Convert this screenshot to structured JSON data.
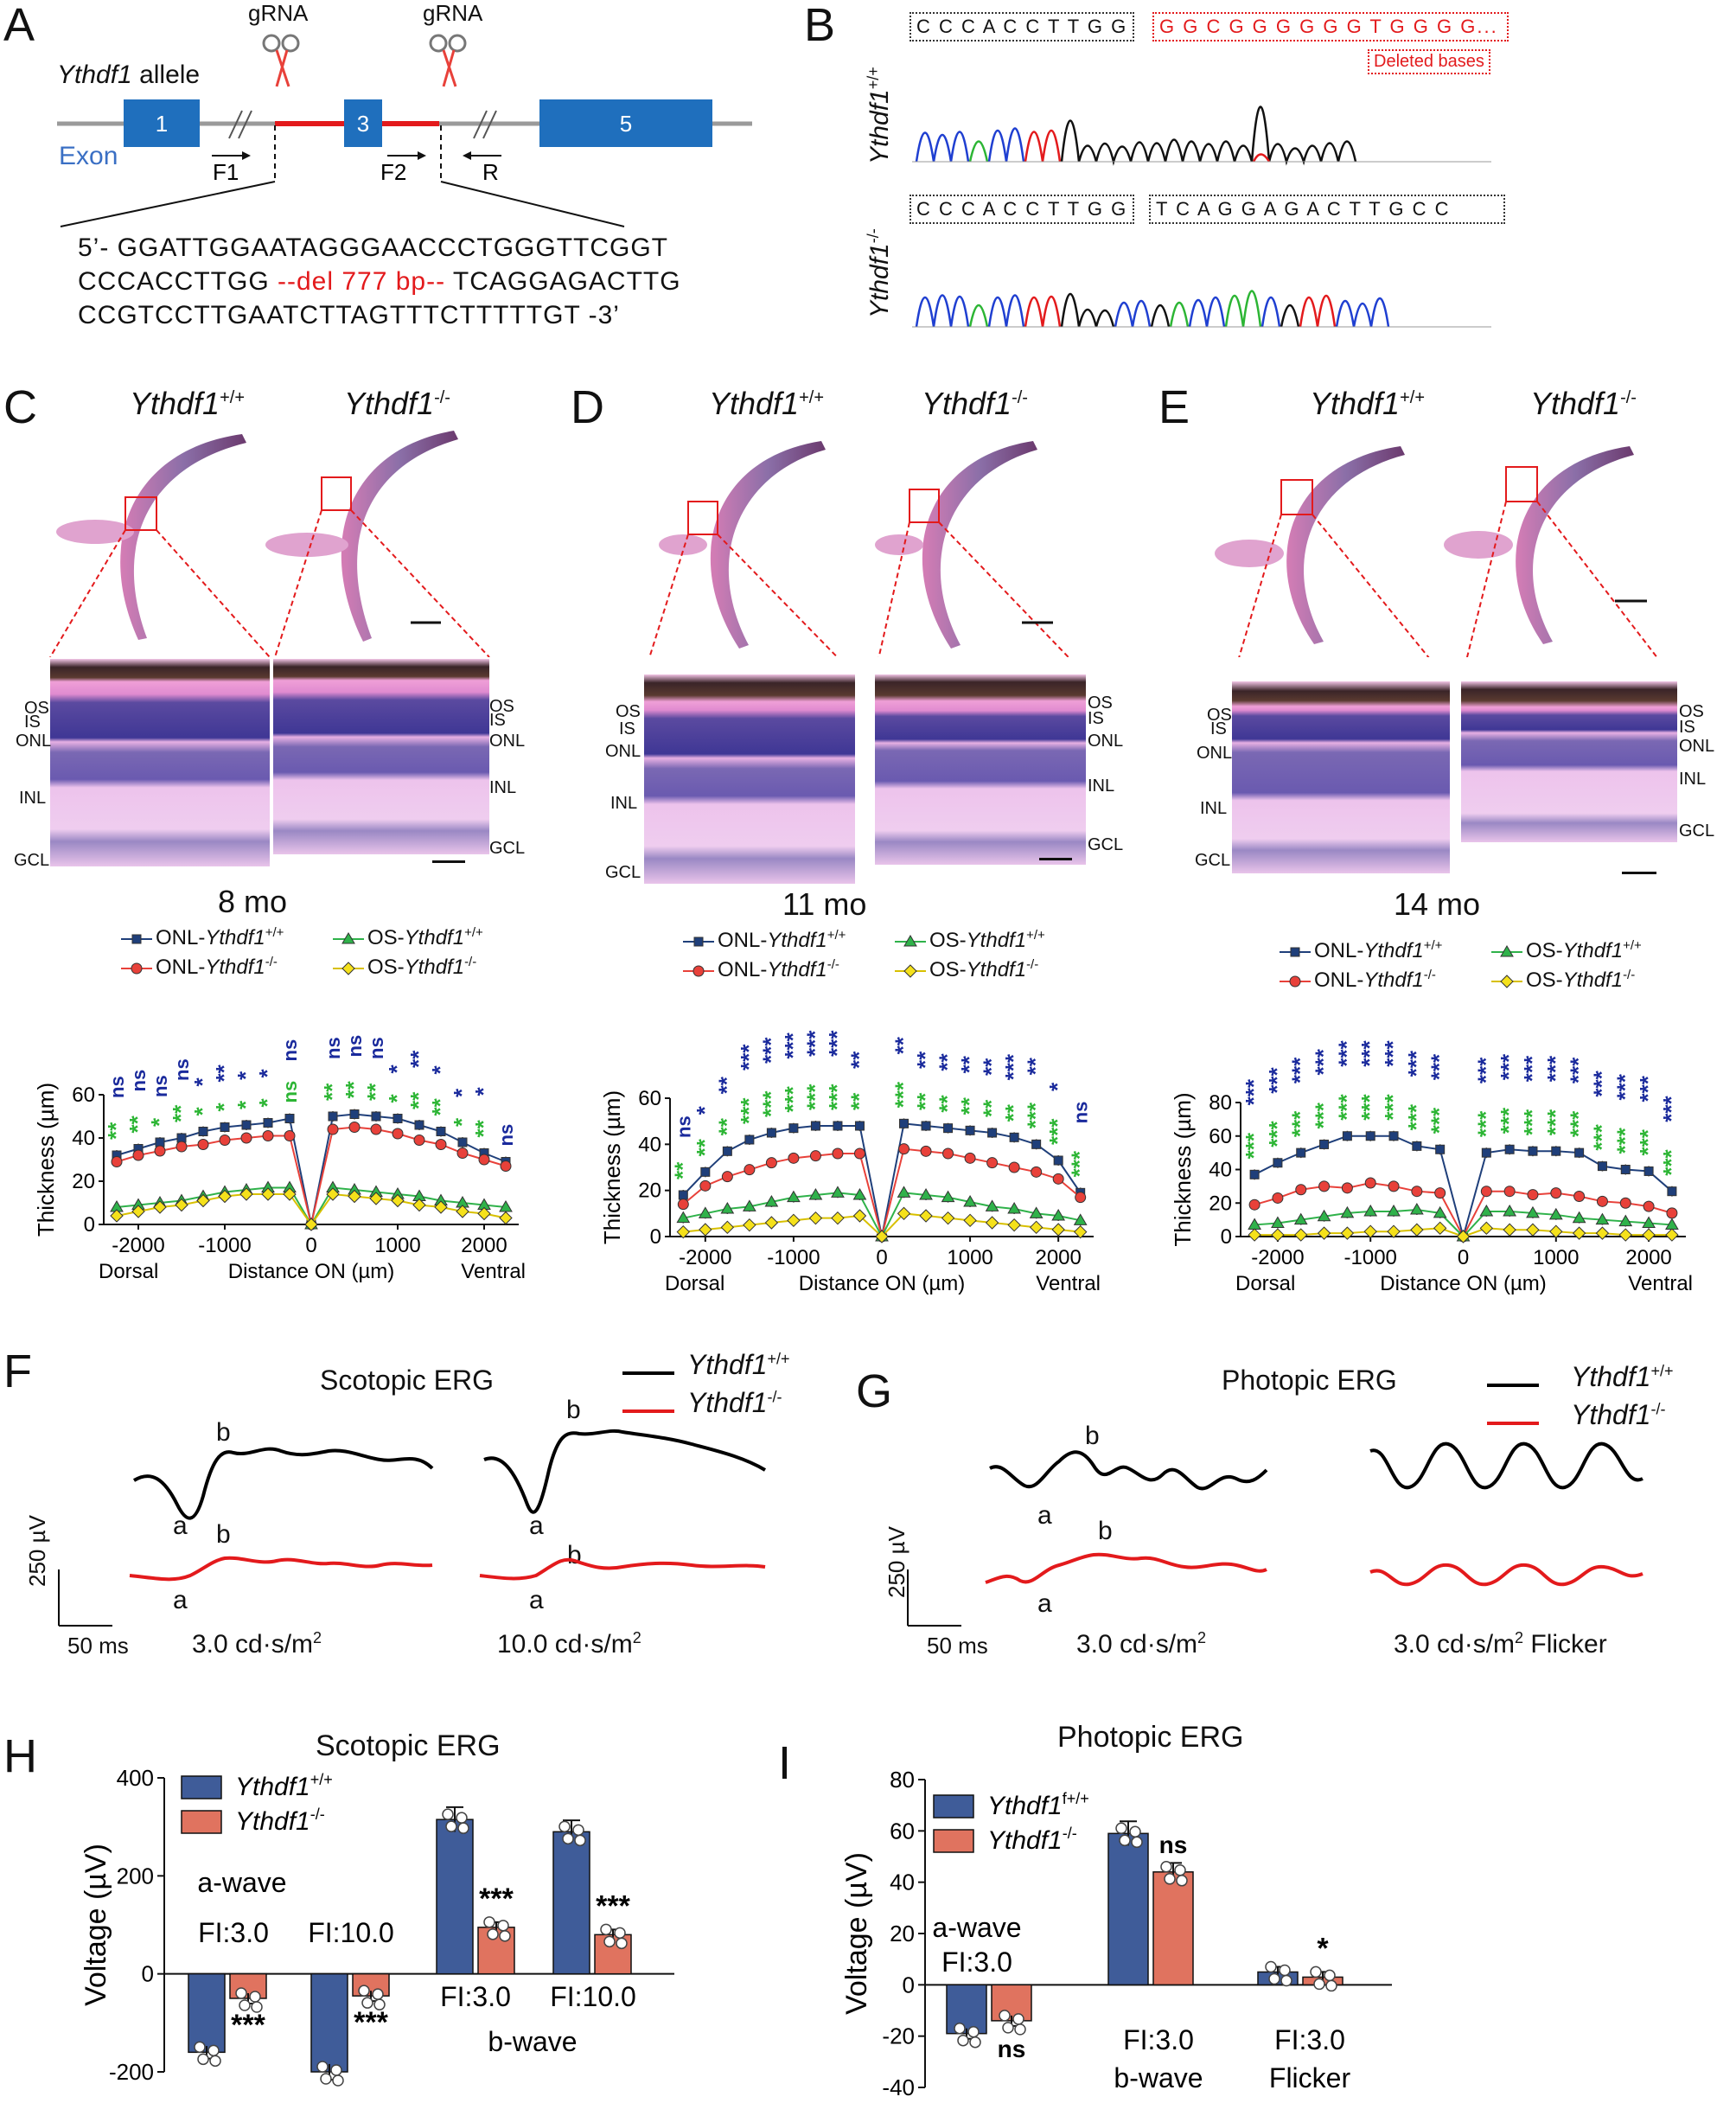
{
  "panels": {
    "A": "A",
    "B": "B",
    "C": "C",
    "D": "D",
    "E": "E",
    "F": "F",
    "G": "G",
    "H": "H",
    "I": "I"
  },
  "panelA": {
    "grna_left": "gRNA",
    "grna_right": "gRNA",
    "allele_gene": "Ythdf1",
    "allele_suffix": " allele",
    "exon_label": "Exon",
    "exons": [
      "1",
      "3",
      "5"
    ],
    "primers": [
      "F1",
      "F2",
      "R"
    ],
    "seq_line1": "5’- GGATTGGAATAGGGAACCCTGGGTTCGGT",
    "seq_line2_a": "CCCACCTTGG ",
    "seq_line2_del": "--del 777 bp--",
    "seq_line2_b": " TCAGGAGACTTG",
    "seq_line3": "CCGTCCTTGAATCTTAGTTTCTTTTTGT -3’",
    "colors": {
      "exon": "#1f6fbd",
      "deletion": "#e31a1c",
      "line": "#9a9a9a",
      "exon_label": "#3a6fc4"
    }
  },
  "panelB": {
    "wt_box_black": "C C C A C C T T G G",
    "wt_box_red": "G G C G G G G G G T G G G G...",
    "deleted_label": "Deleted bases",
    "ko_box_left": "C C C A C C T T G G",
    "ko_box_right": "T C A G G A G A C T T G C C",
    "wt_gene": "Ythdf1",
    "wt_sup": "+/+",
    "ko_gene": "Ythdf1",
    "ko_sup": "-/-"
  },
  "histology": [
    {
      "id": "C",
      "wt_gene": "Ythdf1",
      "wt_sup": "+/+",
      "ko_gene": "Ythdf1",
      "ko_sup": "-/-",
      "age": "8 mo"
    },
    {
      "id": "D",
      "wt_gene": "Ythdf1",
      "wt_sup": "+/+",
      "ko_gene": "Ythdf1",
      "ko_sup": "-/-",
      "age": "11 mo"
    },
    {
      "id": "E",
      "wt_gene": "Ythdf1",
      "wt_sup": "+/+",
      "ko_gene": "Ythdf1",
      "ko_sup": "-/-",
      "age": "14 mo"
    }
  ],
  "layer_labels": {
    "left_C": [
      "OS",
      "IS",
      "ONL",
      "INL",
      "GCL"
    ],
    "right_C": [
      "OS",
      "IS",
      "ONL",
      "INL",
      "GCL"
    ],
    "left_D": [
      "OS",
      "IS",
      "ONL",
      "INL",
      "GCL"
    ],
    "right_D": [
      "OS",
      "IS",
      "ONL",
      "INL",
      "GCL"
    ],
    "left_E": [
      "OS",
      "IS",
      "ONL",
      "INL",
      "GCL"
    ],
    "right_E": [
      "OS",
      "IS",
      "ONL",
      "INL",
      "GCL"
    ]
  },
  "legend_thickness": {
    "onl_wt": "ONL-",
    "onl_ko": "ONL-",
    "os_wt": "OS-",
    "os_ko": "OS-",
    "gene": "Ythdf1",
    "wt_sup": "+/+",
    "ko_sup": "-/-"
  },
  "colors": {
    "onl_wt": "#1f3f7a",
    "onl_ko": "#e8413a",
    "os_wt": "#2fb24a",
    "os_ko": "#f5e11b",
    "sig_blue": "#1a2a9c",
    "sig_green": "#2cb534",
    "sig_ns": "#1a2a9c",
    "bar_wt": "#3f5c99",
    "bar_ko": "#e0735f",
    "trace_wt": "#000000",
    "trace_ko": "#e31a1c"
  },
  "chart_data": [
    {
      "type": "line",
      "panel": "C",
      "title": "8 mo",
      "xlabel": "Distance ON (µm)",
      "x_left_label": "Dorsal",
      "x_right_label": "Ventral",
      "ylabel": "Thickness (µm)",
      "xlim": [
        -2400,
        2400
      ],
      "ylim": [
        0,
        60
      ],
      "xticks": [
        -2000,
        -1000,
        0,
        1000,
        2000
      ],
      "xtick_labels": [
        "-2000",
        "-1000",
        "0",
        "1000",
        "2000"
      ],
      "yticks": [
        0,
        20,
        40,
        60
      ],
      "ytick_labels": [
        "0",
        "20",
        "40",
        "60"
      ],
      "x": [
        -2250,
        -2000,
        -1750,
        -1500,
        -1250,
        -1000,
        -750,
        -500,
        -250,
        0,
        250,
        500,
        750,
        1000,
        1250,
        1500,
        1750,
        2000,
        2250
      ],
      "series": [
        {
          "name": "ONL-Ythdf1+/+",
          "values": [
            32,
            35,
            38,
            40,
            43,
            45,
            46,
            47,
            49,
            0,
            50,
            51,
            50,
            49,
            46,
            43,
            38,
            33,
            29
          ]
        },
        {
          "name": "ONL-Ythdf1-/-",
          "values": [
            29,
            32,
            34,
            36,
            37,
            39,
            40,
            41,
            41,
            0,
            44,
            45,
            44,
            42,
            39,
            37,
            33,
            30,
            27
          ]
        },
        {
          "name": "OS-Ythdf1+/+",
          "values": [
            8,
            9,
            10,
            11,
            13,
            15,
            16,
            17,
            17,
            0,
            17,
            16,
            15,
            14,
            13,
            11,
            10,
            9,
            8
          ]
        },
        {
          "name": "OS-Ythdf1-/-",
          "values": [
            4,
            6,
            8,
            9,
            11,
            13,
            14,
            14,
            14,
            0,
            14,
            13,
            12,
            11,
            9,
            8,
            6,
            5,
            3
          ]
        }
      ],
      "sig_onl": [
        "ns",
        "ns",
        "ns",
        "ns",
        "*",
        "**",
        "*",
        "*",
        "ns",
        "",
        "ns",
        "ns",
        "ns",
        "*",
        "**",
        "*",
        "*",
        "*",
        "ns"
      ],
      "sig_os": [
        "**",
        "**",
        "*",
        "**",
        "*",
        "*",
        "*",
        "*",
        "ns",
        "",
        "**",
        "**",
        "**",
        "*",
        "**",
        "**",
        "*",
        "**",
        ""
      ]
    },
    {
      "type": "line",
      "panel": "D",
      "title": "11 mo",
      "xlabel": "Distance ON (µm)",
      "x_left_label": "Dorsal",
      "x_right_label": "Ventral",
      "ylabel": "Thickness (µm)",
      "xlim": [
        -2400,
        2400
      ],
      "ylim": [
        0,
        60
      ],
      "xticks": [
        -2000,
        -1000,
        0,
        1000,
        2000
      ],
      "xtick_labels": [
        "-2000",
        "-1000",
        "0",
        "1000",
        "2000"
      ],
      "yticks": [
        0,
        20,
        40,
        60
      ],
      "ytick_labels": [
        "0",
        "20",
        "40",
        "60"
      ],
      "x": [
        -2250,
        -2000,
        -1750,
        -1500,
        -1250,
        -1000,
        -750,
        -500,
        -250,
        0,
        250,
        500,
        750,
        1000,
        1250,
        1500,
        1750,
        2000,
        2250
      ],
      "series": [
        {
          "name": "ONL-Ythdf1+/+",
          "values": [
            18,
            28,
            37,
            42,
            45,
            47,
            48,
            48,
            48,
            0,
            49,
            48,
            47,
            46,
            45,
            43,
            40,
            33,
            19
          ]
        },
        {
          "name": "ONL-Ythdf1-/-",
          "values": [
            14,
            22,
            26,
            29,
            32,
            34,
            35,
            36,
            36,
            0,
            38,
            37,
            36,
            34,
            32,
            30,
            28,
            25,
            17
          ]
        },
        {
          "name": "OS-Ythdf1+/+",
          "values": [
            8,
            10,
            12,
            13,
            15,
            17,
            18,
            19,
            18,
            0,
            19,
            18,
            17,
            15,
            13,
            12,
            10,
            9,
            7
          ]
        },
        {
          "name": "OS-Ythdf1-/-",
          "values": [
            2,
            3,
            4,
            5,
            6,
            7,
            8,
            8,
            9,
            0,
            10,
            9,
            8,
            7,
            6,
            5,
            4,
            3,
            2
          ]
        }
      ],
      "sig_onl": [
        "ns",
        "*",
        "**",
        "***",
        "***",
        "***",
        "***",
        "***",
        "**",
        "",
        "**",
        "**",
        "**",
        "**",
        "**",
        "***",
        "**",
        "*",
        "ns"
      ],
      "sig_os": [
        "**",
        "**",
        "**",
        "***",
        "***",
        "***",
        "***",
        "***",
        "**",
        "",
        "***",
        "**",
        "**",
        "**",
        "**",
        "**",
        "***",
        "***",
        "***"
      ]
    },
    {
      "type": "line",
      "panel": "E",
      "title": "14 mo",
      "xlabel": "Distance ON (µm)",
      "x_left_label": "Dorsal",
      "x_right_label": "Ventral",
      "ylabel": "Thickness (µm)",
      "xlim": [
        -2400,
        2400
      ],
      "ylim": [
        0,
        80
      ],
      "xticks": [
        -2000,
        -1000,
        0,
        1000,
        2000
      ],
      "xtick_labels": [
        "-2000",
        "-1000",
        "0",
        "1000",
        "2000"
      ],
      "yticks": [
        0,
        20,
        40,
        60,
        80
      ],
      "ytick_labels": [
        "0",
        "20",
        "40",
        "60",
        "80"
      ],
      "x": [
        -2250,
        -2000,
        -1750,
        -1500,
        -1250,
        -1000,
        -750,
        -500,
        -250,
        0,
        250,
        500,
        750,
        1000,
        1250,
        1500,
        1750,
        2000,
        2250
      ],
      "series": [
        {
          "name": "ONL-Ythdf1+/+",
          "values": [
            37,
            44,
            50,
            55,
            60,
            60,
            60,
            54,
            52,
            0,
            50,
            52,
            51,
            51,
            50,
            42,
            40,
            39,
            27
          ]
        },
        {
          "name": "ONL-Ythdf1-/-",
          "values": [
            19,
            23,
            28,
            30,
            29,
            32,
            30,
            27,
            26,
            0,
            27,
            27,
            25,
            26,
            24,
            21,
            20,
            18,
            14
          ]
        },
        {
          "name": "OS-Ythdf1+/+",
          "values": [
            7,
            8,
            10,
            12,
            14,
            15,
            15,
            16,
            14,
            0,
            15,
            15,
            14,
            13,
            11,
            10,
            9,
            8,
            7
          ]
        },
        {
          "name": "OS-Ythdf1-/-",
          "values": [
            1,
            1,
            1,
            2,
            2,
            3,
            3,
            4,
            5,
            0,
            5,
            4,
            4,
            3,
            2,
            2,
            1,
            1,
            1
          ]
        }
      ],
      "sig_onl": [
        "***",
        "***",
        "***",
        "***",
        "***",
        "***",
        "***",
        "***",
        "***",
        "",
        "***",
        "***",
        "***",
        "***",
        "***",
        "***",
        "***",
        "***",
        "***"
      ],
      "sig_os": [
        "***",
        "***",
        "***",
        "***",
        "***",
        "***",
        "***",
        "***",
        "***",
        "",
        "***",
        "***",
        "***",
        "***",
        "***",
        "***",
        "***",
        "***",
        "***"
      ]
    },
    {
      "type": "bar",
      "panel": "H",
      "title": "Scotopic  ERG",
      "ylabel": "Voltage (µV)",
      "ylim": [
        -200,
        400
      ],
      "yticks": [
        -200,
        0,
        200,
        400
      ],
      "ytick_labels": [
        "-200",
        "0",
        "200",
        "400"
      ],
      "categories": [
        "a-wave FI:3.0",
        "a-wave FI:10.0",
        "b-wave FI:3.0",
        "b-wave FI:10.0"
      ],
      "series": [
        {
          "name": "Ythdf1+/+",
          "values": [
            -160,
            -200,
            315,
            290
          ]
        },
        {
          "name": "Ythdf1-/-",
          "values": [
            -50,
            -45,
            95,
            80
          ]
        }
      ],
      "significance": [
        "***",
        "***",
        "***",
        "***"
      ],
      "group_labels": [
        "a-wave",
        "FI:3.0",
        "FI:10.0",
        "FI:3.0",
        "FI:10.0",
        "b-wave"
      ]
    },
    {
      "type": "bar",
      "panel": "I",
      "title": "Photopic  ERG",
      "ylabel": "Voltage (µV)",
      "ylim": [
        -40,
        80
      ],
      "yticks": [
        -40,
        -20,
        0,
        20,
        40,
        60,
        80
      ],
      "ytick_labels": [
        "-40",
        "-20",
        "0",
        "20",
        "40",
        "60",
        "80"
      ],
      "categories": [
        "a-wave FI:3.0",
        "b-wave FI:3.0",
        "Flicker FI:3.0"
      ],
      "series": [
        {
          "name": "Ythdf1f+/+",
          "values": [
            -19,
            59,
            5
          ]
        },
        {
          "name": "Ythdf1-/-",
          "values": [
            -14,
            44,
            3
          ]
        }
      ],
      "significance": [
        "ns",
        "ns",
        "*"
      ],
      "group_labels": [
        "a-wave",
        "FI:3.0",
        "FI:3.0",
        "b-wave",
        "FI:3.0",
        "Flicker"
      ]
    }
  ],
  "panelF": {
    "title": "Scotopic ERG",
    "legend_wt_gene": "Ythdf1",
    "legend_wt_sup": "+/+",
    "legend_ko_gene": "Ythdf1",
    "legend_ko_sup": "-/-",
    "scale_v": "250 µV",
    "scale_t": "50 ms",
    "cond1": "3.0 cd·s/m",
    "cond1_sup": "2",
    "cond2": "10.0 cd·s/m",
    "cond2_sup": "2",
    "a": "a",
    "b": "b"
  },
  "panelG": {
    "title": "Photopic ERG",
    "legend_wt_gene": "Ythdf1",
    "legend_wt_sup": "+/+",
    "legend_ko_gene": "Ythdf1",
    "legend_ko_sup": "-/-",
    "scale_v": "250 µV",
    "scale_t": "50 ms",
    "cond1": "3.0 cd·s/m",
    "cond1_sup": "2",
    "cond2": "3.0 cd·s/m",
    "cond2_sup": "2",
    "cond2_tail": " Flicker",
    "a": "a",
    "b": "b"
  },
  "legend_H": {
    "wt_gene": "Ythdf1",
    "wt_sup": "+/+",
    "ko_gene": "Ythdf1",
    "ko_sup": "-/-"
  },
  "legend_I": {
    "wt_gene": "Ythdf1",
    "wt_sup": "f+/+",
    "ko_gene": "Ythdf1",
    "ko_sup": "-/-"
  }
}
